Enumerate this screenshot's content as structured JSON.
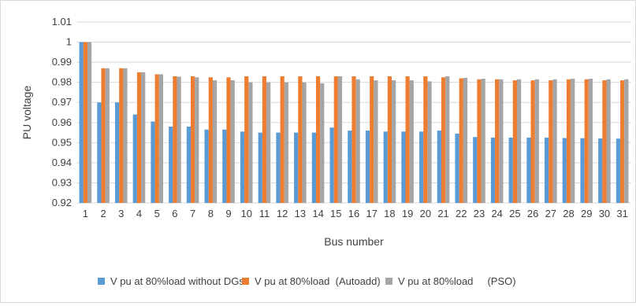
{
  "chart_data": {
    "type": "bar",
    "title": "",
    "xlabel": "Bus number",
    "ylabel": "PU voltage",
    "ylim": [
      0.92,
      1.01
    ],
    "yticks": [
      "1.01",
      "1",
      "0.99",
      "0.98",
      "0.97",
      "0.96",
      "0.95",
      "0.94",
      "0.93",
      "0.92"
    ],
    "grid": true,
    "legend_position": "bottom",
    "categories": [
      "1",
      "2",
      "3",
      "4",
      "5",
      "6",
      "7",
      "8",
      "9",
      "10",
      "11",
      "12",
      "13",
      "14",
      "15",
      "16",
      "17",
      "18",
      "19",
      "20",
      "21",
      "22",
      "23",
      "24",
      "25",
      "26",
      "27",
      "28",
      "29",
      "30",
      "31"
    ],
    "series": [
      {
        "name": "V pu at 80%load without DGs",
        "color": "#5b9bd5",
        "values": [
          1.0,
          0.97,
          0.97,
          0.964,
          0.9605,
          0.958,
          0.958,
          0.9565,
          0.9565,
          0.9555,
          0.955,
          0.955,
          0.955,
          0.955,
          0.9575,
          0.956,
          0.956,
          0.9555,
          0.9555,
          0.9555,
          0.956,
          0.9545,
          0.9528,
          0.9525,
          0.9525,
          0.9525,
          0.9525,
          0.9523,
          0.9522,
          0.9521,
          0.952
        ]
      },
      {
        "name": "V pu at 80%load  (Autoadd)",
        "color": "#ed7d31",
        "values": [
          1.0,
          0.987,
          0.987,
          0.985,
          0.984,
          0.983,
          0.983,
          0.9825,
          0.9825,
          0.983,
          0.983,
          0.983,
          0.983,
          0.983,
          0.983,
          0.983,
          0.983,
          0.983,
          0.983,
          0.983,
          0.9825,
          0.982,
          0.9815,
          0.9815,
          0.981,
          0.981,
          0.981,
          0.9815,
          0.9815,
          0.981,
          0.981
        ]
      },
      {
        "name": "V pu at 80%load     (PSO)",
        "color": "#a5a5a5",
        "values": [
          1.0,
          0.987,
          0.987,
          0.985,
          0.984,
          0.9828,
          0.9825,
          0.981,
          0.981,
          0.98,
          0.98,
          0.98,
          0.98,
          0.9795,
          0.983,
          0.9815,
          0.981,
          0.981,
          0.981,
          0.9805,
          0.983,
          0.9822,
          0.9818,
          0.9815,
          0.9815,
          0.9815,
          0.9815,
          0.9818,
          0.9818,
          0.9815,
          0.9815
        ]
      }
    ]
  }
}
